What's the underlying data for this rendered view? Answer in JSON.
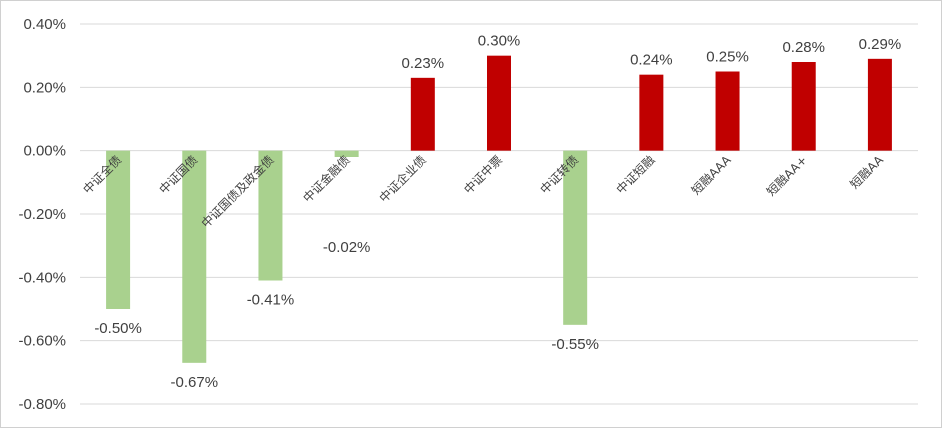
{
  "chart_data": {
    "type": "bar",
    "title": "",
    "xlabel": "",
    "ylabel": "",
    "ylim": [
      -0.8,
      0.4
    ],
    "yticks": [
      0.4,
      0.2,
      0.0,
      -0.2,
      -0.4,
      -0.6,
      -0.8
    ],
    "ytick_labels": [
      "0.40%",
      "0.20%",
      "0.00%",
      "-0.20%",
      "-0.40%",
      "-0.60%",
      "-0.80%"
    ],
    "grid": true,
    "legend": "none",
    "colors": {
      "positive": "#c00000",
      "negative": "#a9d18e"
    },
    "categories": [
      "中证全债",
      "中证国债",
      "中证国债及政金债",
      "中证金融债",
      "中证企业债",
      "中证中票",
      "中证转债",
      "中证短融",
      "短融AAA",
      "短融AA+",
      "短融AA"
    ],
    "values": [
      -0.5,
      -0.67,
      -0.41,
      -0.02,
      0.23,
      0.3,
      -0.55,
      0.24,
      0.25,
      0.28,
      0.29
    ],
    "data_labels": [
      "-0.50%",
      "-0.67%",
      "-0.41%",
      "-0.02%",
      "0.23%",
      "0.30%",
      "-0.55%",
      "0.24%",
      "0.25%",
      "0.28%",
      "0.29%"
    ]
  }
}
